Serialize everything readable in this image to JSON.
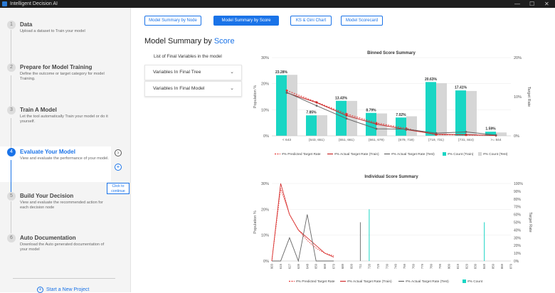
{
  "app": {
    "title": "Intelligent Decision AI",
    "window_controls": [
      "—",
      "☐",
      "✕"
    ]
  },
  "sidebar": {
    "steps": [
      {
        "num": "1",
        "title": "Data",
        "desc": "Upload a dataset to Train your model"
      },
      {
        "num": "2",
        "title": "Prepare for Model Training",
        "desc": "Define the outcome or target category for model Training."
      },
      {
        "num": "3",
        "title": "Train A Model",
        "desc": "Let the tool automatically Train your model or do it yourself."
      },
      {
        "num": "4",
        "title": "Evaluate Your Model",
        "desc": "View and evaluate the performance of your model."
      },
      {
        "num": "5",
        "title": "Build Your Decision",
        "desc": "View and evaluate the recommended action for each decision node"
      },
      {
        "num": "6",
        "title": "Auto Documentation",
        "desc": "Download the Auto generated documentation of your model"
      }
    ],
    "click_tip": "Click to continue",
    "new_project": "Start a New Project"
  },
  "tabs": [
    {
      "label": "Model Summary by Node"
    },
    {
      "label": "Model Summary by Score"
    },
    {
      "label": "KS & Gini Chart"
    },
    {
      "label": "Model Scorecard"
    }
  ],
  "page": {
    "title_prefix": "Model Summary by",
    "title_accent": "Score"
  },
  "variables": {
    "heading": "List of Final Variables in the model",
    "items": [
      {
        "label": "Variables In Final Tree"
      },
      {
        "label": "Variables In Final Model"
      }
    ]
  },
  "chart_data": [
    {
      "type": "bar",
      "title": "Binned Score Summary",
      "xlabel": "",
      "ylabel": "Population %",
      "y2label": "Target Rate",
      "ylim": [
        0,
        30
      ],
      "y2lim": [
        0,
        20
      ],
      "yticks": [
        "0%",
        "10%",
        "20%",
        "30%"
      ],
      "y2ticks": [
        "0%",
        "10%",
        "20%"
      ],
      "categories": [
        "< 643",
        "[643, 651)",
        "[651, 661)",
        "[661, 679)",
        "[679, 719)",
        "[719, 731)",
        "[731, 844)",
        ">= 844"
      ],
      "series": [
        {
          "name": "#% Count (Train)",
          "kind": "bar",
          "color": "#19d6c4",
          "values": [
            23.28,
            7.85,
            13.43,
            8.79,
            7.02,
            20.63,
            17.41,
            1.59
          ]
        },
        {
          "name": "#% Count (Test)",
          "kind": "bar",
          "color": "#d6d6d6",
          "values": [
            23.4,
            7.9,
            13.4,
            8.6,
            7.5,
            20.2,
            17.2,
            1.3
          ]
        },
        {
          "name": "#% Predicted Target Rate",
          "kind": "line",
          "axis": "right",
          "dash": true,
          "color": "#e53935",
          "values": [
            11.6,
            8.6,
            5.6,
            3.3,
            1.9,
            0.3,
            0.2,
            0.1
          ]
        },
        {
          "name": "#% Actual Target Rate (Train)",
          "kind": "line",
          "axis": "right",
          "color": "#c62828",
          "values": [
            11.0,
            8.5,
            5.2,
            3.0,
            1.6,
            0.4,
            0.3,
            0.1
          ]
        },
        {
          "name": "#% Actual Target Rate (Test)",
          "kind": "line",
          "axis": "right",
          "color": "#666666",
          "values": [
            11.1,
            7.7,
            4.4,
            1.8,
            1.7,
            0.7,
            1.0,
            0.2
          ]
        }
      ],
      "data_labels": [
        "23.28%",
        "7.85%",
        "13.43%",
        "8.79%",
        "7.02%",
        "20.63%",
        "17.41%",
        "1.59%"
      ],
      "legend": "bottom"
    },
    {
      "type": "line",
      "title": "Individual Score Summary",
      "ylabel": "Population %",
      "y2label": "Target Rate",
      "ylim": [
        0,
        30
      ],
      "y2lim": [
        0,
        100
      ],
      "yticks": [
        "0%",
        "10%",
        "20%",
        "30%"
      ],
      "y2ticks": [
        "0%",
        "10%",
        "20%",
        "30%",
        "40%",
        "50%",
        "60%",
        "70%",
        "80%",
        "90%",
        "100%"
      ],
      "xticks": [
        "603",
        "615",
        "627",
        "639",
        "648",
        "659",
        "669",
        "679",
        "689",
        "699",
        "711",
        "720",
        "729",
        "739",
        "749",
        "759",
        "769",
        "779",
        "789",
        "799",
        "809",
        "819",
        "829",
        "839",
        "849",
        "859",
        "869",
        "879"
      ],
      "spikes": [
        {
          "i": 0,
          "pred": 0,
          "trainA": 0,
          "testA": 0
        },
        {
          "i": 2,
          "pred": 28,
          "trainA": 100,
          "testA": 0
        },
        {
          "i": 4,
          "pred": 18,
          "trainA": 60,
          "testA": 30
        },
        {
          "i": 6,
          "pred": 12,
          "trainA": 40,
          "testA": 0
        },
        {
          "i": 8,
          "pred": 8,
          "trainA": 30,
          "testA": 60
        },
        {
          "i": 10,
          "pred": 5,
          "trainA": 20,
          "testA": 0
        },
        {
          "i": 12,
          "pred": 3,
          "trainA": 10,
          "testA": 0
        },
        {
          "i": 14,
          "pred": 2,
          "trainA": 5,
          "testA": 0
        }
      ],
      "count_spikes": [
        {
          "x": "720",
          "value": 20
        },
        {
          "x": "849",
          "value": 15
        }
      ],
      "test_spikes": [
        {
          "x": "711",
          "value": 15
        }
      ],
      "legend": [
        "#% Predicted Target Rate",
        "#% Actual Target Rate (Train)",
        "#% Actual Target Rate (Test)",
        "#% Count"
      ]
    }
  ]
}
